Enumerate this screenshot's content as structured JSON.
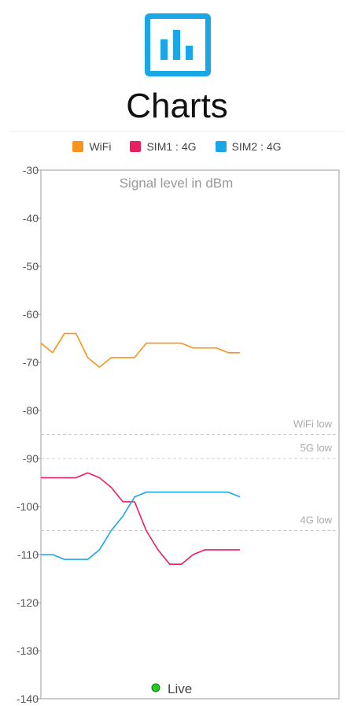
{
  "header": {
    "icon": "bar-chart-icon",
    "title": "Charts"
  },
  "colors": {
    "wifi": "#f7941d",
    "sim1": "#e91e63",
    "sim2": "#1aa7e8",
    "threshold": "#cccccc",
    "live_dot": "#22cc22"
  },
  "legend": [
    {
      "label": "WiFi",
      "color": "#f7941d"
    },
    {
      "label": "SIM1 : 4G",
      "color": "#e91e63"
    },
    {
      "label": "SIM2 : 4G",
      "color": "#1aa7e8"
    }
  ],
  "live_label": "Live",
  "chart_data": {
    "type": "line",
    "title": "Signal level in dBm",
    "ylim": [
      -140,
      -30
    ],
    "yticks": [
      -30,
      -40,
      -50,
      -60,
      -70,
      -80,
      -90,
      -100,
      -110,
      -120,
      -130,
      -140
    ],
    "grid": false,
    "legend_position": "top",
    "thresholds": [
      {
        "label": "WiFi low",
        "value": -85
      },
      {
        "label": "5G low",
        "value": -90
      },
      {
        "label": "4G low",
        "value": -105
      }
    ],
    "series": [
      {
        "name": "WiFi",
        "color": "#f7941d",
        "values": [
          -66,
          -68,
          -64,
          -64,
          -69,
          -71,
          -69,
          -69,
          -69,
          -66,
          -66,
          -66,
          -66,
          -67,
          -67,
          -67,
          -68,
          -68
        ]
      },
      {
        "name": "SIM1 : 4G",
        "color": "#e91e63",
        "values": [
          -94,
          -94,
          -94,
          -94,
          -93,
          -94,
          -96,
          -99,
          -99,
          -105,
          -109,
          -112,
          -112,
          -110,
          -109,
          -109,
          -109,
          -109
        ]
      },
      {
        "name": "SIM2 : 4G",
        "color": "#1aa7e8",
        "values": [
          -110,
          -110,
          -111,
          -111,
          -111,
          -109,
          -105,
          -102,
          -98,
          -97,
          -97,
          -97,
          -97,
          -97,
          -97,
          -97,
          -97,
          -98
        ]
      }
    ]
  }
}
